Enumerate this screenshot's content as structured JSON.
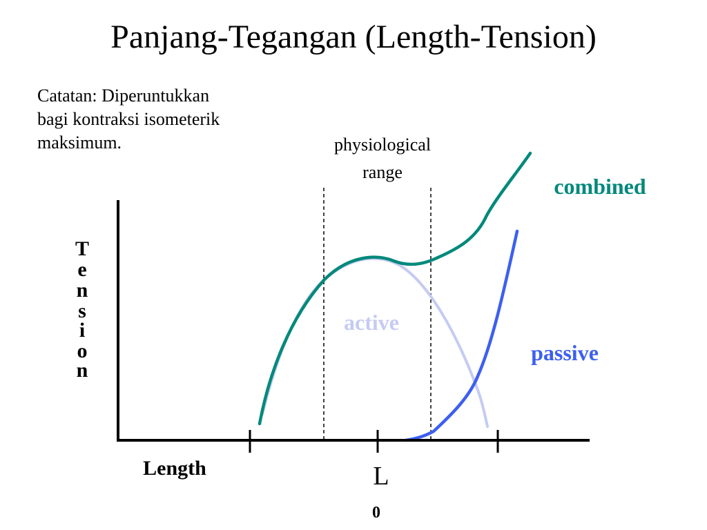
{
  "title": "Panjang-Tegangan (Length-Tension)",
  "note": {
    "lines": [
      "Catatan: Diperuntukkan",
      "bagi kontraksi isometerik",
      "maksimum."
    ]
  },
  "diagram": {
    "range_label_line1": "physiological",
    "range_label_line2": "range",
    "y_axis_letters": [
      "T",
      "e",
      "n",
      "s",
      "i",
      "o",
      "n"
    ],
    "x_axis_label": "Length",
    "l0_main": "L",
    "l0_sub": "0",
    "curve_labels": {
      "combined": "combined",
      "active": "active",
      "passive": "passive"
    },
    "colors": {
      "combined": "#00897b",
      "active": "#c5cbf2",
      "passive": "#3d5ff0",
      "axes": "#000000"
    }
  }
}
